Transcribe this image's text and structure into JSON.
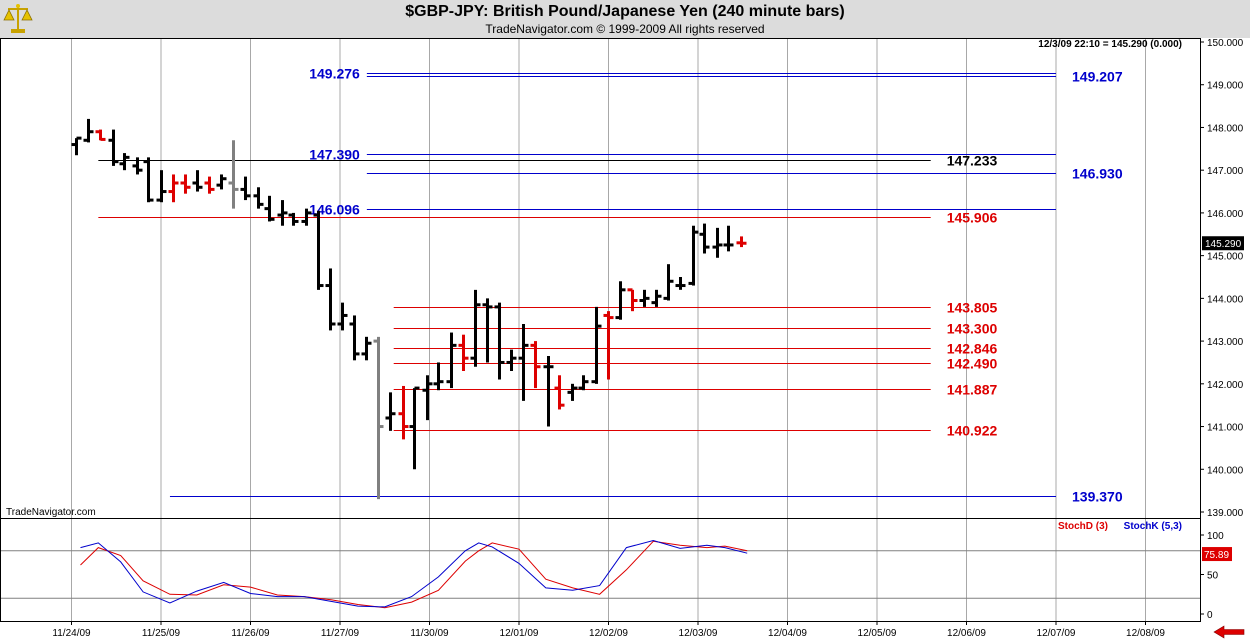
{
  "header": {
    "title": "$GBP-JPY:  British Pound/Japanese Yen  (240 minute bars)",
    "subtitle": "TradeNavigator.com © 1999-2009 All rights reserved",
    "info": "12/3/09 22:10 = 145.290 (0.000)",
    "watermark": "TradeNavigator.com"
  },
  "colors": {
    "background": "#ffffff",
    "header": "#dcdcdc",
    "grid": "#a8a8a8",
    "blue_level": "#0000cc",
    "red_level": "#dd0000",
    "black_level": "#000000",
    "up_bar": "#000000",
    "down_bar": "#dd0000",
    "gray_bar": "#808080",
    "stochD": "#dd0000",
    "stochK": "#0000cc"
  },
  "chart_data": [
    {
      "type": "ohlc",
      "title": "$GBP-JPY:  British Pound/Japanese Yen  (240 minute bars)",
      "ylim": [
        139,
        150
      ],
      "yticks": [
        139,
        140,
        141,
        142,
        143,
        144,
        145,
        146,
        147,
        148,
        149,
        150
      ],
      "ytick_labels": [
        "139.000",
        "140.000",
        "141.000",
        "142.000",
        "143.000",
        "144.000",
        "145.000",
        "146.000",
        "147.000",
        "148.000",
        "149.000",
        "150.000"
      ],
      "xlim": [
        -0.2,
        13.5
      ],
      "x_dates": [
        "11/24/09",
        "11/25/09",
        "11/26/09",
        "11/27/09",
        "11/30/09",
        "12/01/09",
        "12/02/09",
        "12/03/09",
        "12/04/09",
        "12/05/09",
        "12/06/09",
        "12/07/09",
        "12/08/09"
      ],
      "last_price_label": "145.290",
      "bars": [
        {
          "x": 0.05,
          "h": 147.75,
          "l": 147.35,
          "o": 147.6,
          "c": 147.75,
          "col": "k"
        },
        {
          "x": 0.18,
          "h": 148.2,
          "l": 147.65,
          "o": 147.7,
          "c": 147.9,
          "col": "k"
        },
        {
          "x": 0.32,
          "h": 147.95,
          "l": 147.7,
          "o": 147.9,
          "c": 147.72,
          "col": "r"
        },
        {
          "x": 0.46,
          "h": 147.95,
          "l": 147.1,
          "o": 147.7,
          "c": 147.2,
          "col": "k"
        },
        {
          "x": 0.59,
          "h": 147.4,
          "l": 147.0,
          "o": 147.15,
          "c": 147.3,
          "col": "k"
        },
        {
          "x": 0.73,
          "h": 147.3,
          "l": 146.9,
          "o": 147.1,
          "c": 147.0,
          "col": "k"
        },
        {
          "x": 0.86,
          "h": 147.3,
          "l": 146.25,
          "o": 147.2,
          "c": 146.3,
          "col": "k"
        },
        {
          "x": 1.0,
          "h": 147.0,
          "l": 146.25,
          "o": 146.3,
          "c": 146.5,
          "col": "k"
        },
        {
          "x": 1.13,
          "h": 146.9,
          "l": 146.25,
          "o": 146.5,
          "c": 146.7,
          "col": "r"
        },
        {
          "x": 1.27,
          "h": 146.9,
          "l": 146.45,
          "o": 146.7,
          "c": 146.6,
          "col": "r"
        },
        {
          "x": 1.4,
          "h": 147.0,
          "l": 146.5,
          "o": 146.7,
          "c": 146.6,
          "col": "k"
        },
        {
          "x": 1.54,
          "h": 146.85,
          "l": 146.45,
          "o": 146.7,
          "c": 146.55,
          "col": "r"
        },
        {
          "x": 1.67,
          "h": 146.9,
          "l": 146.55,
          "o": 146.65,
          "c": 146.8,
          "col": "k"
        },
        {
          "x": 1.81,
          "h": 147.7,
          "l": 146.1,
          "o": 146.7,
          "c": 146.55,
          "col": "g"
        },
        {
          "x": 1.94,
          "h": 146.85,
          "l": 146.3,
          "o": 146.55,
          "c": 146.4,
          "col": "k"
        },
        {
          "x": 2.08,
          "h": 146.6,
          "l": 146.1,
          "o": 146.4,
          "c": 146.2,
          "col": "k"
        },
        {
          "x": 2.21,
          "h": 146.4,
          "l": 145.8,
          "o": 146.1,
          "c": 145.85,
          "col": "k"
        },
        {
          "x": 2.35,
          "h": 146.3,
          "l": 145.7,
          "o": 145.95,
          "c": 146.0,
          "col": "k"
        },
        {
          "x": 2.48,
          "h": 146.0,
          "l": 145.7,
          "o": 145.95,
          "c": 145.8,
          "col": "k"
        },
        {
          "x": 2.62,
          "h": 146.1,
          "l": 145.7,
          "o": 145.8,
          "c": 146.0,
          "col": "k"
        },
        {
          "x": 2.75,
          "h": 146.05,
          "l": 144.2,
          "o": 145.95,
          "c": 144.3,
          "col": "k"
        },
        {
          "x": 2.89,
          "h": 144.7,
          "l": 143.25,
          "o": 144.3,
          "c": 143.4,
          "col": "k"
        },
        {
          "x": 3.02,
          "h": 143.9,
          "l": 143.25,
          "o": 143.4,
          "c": 143.6,
          "col": "k"
        },
        {
          "x": 3.16,
          "h": 143.6,
          "l": 142.55,
          "o": 143.4,
          "c": 142.7,
          "col": "k"
        },
        {
          "x": 3.29,
          "h": 143.1,
          "l": 142.55,
          "o": 142.7,
          "c": 142.95,
          "col": "k"
        },
        {
          "x": 3.43,
          "h": 143.1,
          "l": 139.3,
          "o": 143.0,
          "c": 141.0,
          "col": "g"
        },
        {
          "x": 3.56,
          "h": 141.8,
          "l": 140.9,
          "o": 141.2,
          "c": 141.3,
          "col": "k"
        },
        {
          "x": 3.7,
          "h": 141.95,
          "l": 140.7,
          "o": 141.3,
          "c": 141.0,
          "col": "r"
        },
        {
          "x": 3.83,
          "h": 141.9,
          "l": 140.0,
          "o": 141.0,
          "c": 141.9,
          "col": "k"
        },
        {
          "x": 3.97,
          "h": 142.2,
          "l": 141.15,
          "o": 141.85,
          "c": 142.0,
          "col": "k"
        },
        {
          "x": 4.1,
          "h": 142.5,
          "l": 141.85,
          "o": 142.0,
          "c": 142.05,
          "col": "k"
        },
        {
          "x": 4.24,
          "h": 143.2,
          "l": 141.9,
          "o": 142.05,
          "c": 142.9,
          "col": "k"
        },
        {
          "x": 4.37,
          "h": 143.15,
          "l": 142.3,
          "o": 142.9,
          "c": 142.6,
          "col": "r"
        },
        {
          "x": 4.51,
          "h": 144.2,
          "l": 142.4,
          "o": 142.6,
          "c": 143.85,
          "col": "k"
        },
        {
          "x": 4.64,
          "h": 144.0,
          "l": 142.5,
          "o": 143.85,
          "c": 143.8,
          "col": "k"
        },
        {
          "x": 4.78,
          "h": 143.9,
          "l": 142.1,
          "o": 143.8,
          "c": 142.5,
          "col": "k"
        },
        {
          "x": 4.91,
          "h": 142.8,
          "l": 142.3,
          "o": 142.5,
          "c": 142.6,
          "col": "k"
        },
        {
          "x": 5.05,
          "h": 143.4,
          "l": 141.6,
          "o": 142.6,
          "c": 142.9,
          "col": "k"
        },
        {
          "x": 5.18,
          "h": 143.0,
          "l": 141.9,
          "o": 142.9,
          "c": 142.4,
          "col": "r"
        },
        {
          "x": 5.32,
          "h": 142.65,
          "l": 141.0,
          "o": 142.4,
          "c": 142.4,
          "col": "k"
        },
        {
          "x": 5.45,
          "h": 142.2,
          "l": 141.4,
          "o": 141.9,
          "c": 141.5,
          "col": "r"
        },
        {
          "x": 5.59,
          "h": 142.0,
          "l": 141.6,
          "o": 141.8,
          "c": 141.9,
          "col": "k"
        },
        {
          "x": 5.72,
          "h": 142.2,
          "l": 141.85,
          "o": 141.9,
          "c": 142.05,
          "col": "k"
        },
        {
          "x": 5.86,
          "h": 143.8,
          "l": 142.0,
          "o": 142.05,
          "c": 143.35,
          "col": "k"
        },
        {
          "x": 5.99,
          "h": 143.7,
          "l": 142.1,
          "o": 143.6,
          "c": 143.55,
          "col": "r"
        },
        {
          "x": 6.13,
          "h": 144.4,
          "l": 143.5,
          "o": 143.55,
          "c": 144.2,
          "col": "k"
        },
        {
          "x": 6.26,
          "h": 144.2,
          "l": 143.7,
          "o": 144.2,
          "c": 143.95,
          "col": "r"
        },
        {
          "x": 6.4,
          "h": 144.2,
          "l": 143.8,
          "o": 143.95,
          "c": 144.0,
          "col": "k"
        },
        {
          "x": 6.53,
          "h": 144.2,
          "l": 143.8,
          "o": 143.9,
          "c": 144.05,
          "col": "k"
        },
        {
          "x": 6.67,
          "h": 144.8,
          "l": 143.95,
          "o": 144.0,
          "c": 144.4,
          "col": "k"
        },
        {
          "x": 6.8,
          "h": 144.5,
          "l": 144.2,
          "o": 144.3,
          "c": 144.3,
          "col": "k"
        },
        {
          "x": 6.94,
          "h": 145.7,
          "l": 144.3,
          "o": 144.35,
          "c": 145.55,
          "col": "k"
        },
        {
          "x": 7.07,
          "h": 145.75,
          "l": 145.05,
          "o": 145.5,
          "c": 145.2,
          "col": "k"
        },
        {
          "x": 7.21,
          "h": 145.65,
          "l": 144.95,
          "o": 145.2,
          "c": 145.25,
          "col": "k"
        },
        {
          "x": 7.34,
          "h": 145.7,
          "l": 145.1,
          "o": 145.25,
          "c": 145.25,
          "col": "k"
        },
        {
          "x": 7.48,
          "h": 145.45,
          "l": 145.2,
          "o": 145.3,
          "c": 145.29,
          "col": "r"
        }
      ]
    },
    {
      "type": "line",
      "legend": [
        "StochD (3)",
        "StochK (5,3)"
      ],
      "ylim": [
        -5,
        115
      ],
      "yticks": [
        0,
        50,
        100
      ],
      "last_value_label": "75.89",
      "series": [
        {
          "name": "StochD (3)",
          "color": "#dd0000",
          "x": [
            0.1,
            0.3,
            0.55,
            0.8,
            1.1,
            1.4,
            1.7,
            2.0,
            2.3,
            2.6,
            2.9,
            3.2,
            3.5,
            3.8,
            4.1,
            4.4,
            4.55,
            4.7,
            5.0,
            5.3,
            5.6,
            5.9,
            6.2,
            6.5,
            6.8,
            7.1,
            7.3,
            7.55
          ],
          "values": [
            62,
            84,
            74,
            42,
            25,
            24,
            37,
            34,
            24,
            22,
            18,
            12,
            8,
            15,
            30,
            67,
            80,
            90,
            82,
            44,
            33,
            25,
            56,
            92,
            87,
            84,
            86,
            80
          ]
        },
        {
          "name": "StochK (5,3)",
          "color": "#0000cc",
          "x": [
            0.1,
            0.3,
            0.55,
            0.8,
            1.1,
            1.4,
            1.7,
            2.0,
            2.3,
            2.6,
            2.9,
            3.2,
            3.5,
            3.8,
            4.1,
            4.4,
            4.55,
            4.7,
            5.0,
            5.3,
            5.6,
            5.9,
            6.2,
            6.5,
            6.8,
            7.1,
            7.3,
            7.55
          ],
          "values": [
            84,
            90,
            66,
            28,
            14,
            29,
            40,
            26,
            22,
            22,
            16,
            10,
            9,
            22,
            47,
            80,
            90,
            85,
            64,
            33,
            30,
            36,
            84,
            93,
            83,
            87,
            84,
            77
          ]
        }
      ]
    }
  ],
  "levels": [
    {
      "value": 149.276,
      "label": "149.276",
      "color": "blue",
      "x1": 3.3,
      "x2": 11.0,
      "label_side": "left"
    },
    {
      "value": 149.207,
      "label": "149.207",
      "color": "blue",
      "x1": 3.3,
      "x2": 11.0,
      "label_side": "right"
    },
    {
      "value": 147.39,
      "label": "147.390",
      "color": "blue",
      "x1": 3.3,
      "x2": 11.0,
      "label_side": "left"
    },
    {
      "value": 147.233,
      "label": "147.233",
      "color": "black",
      "x1": 0.3,
      "x2": 9.6,
      "label_side": "right"
    },
    {
      "value": 146.93,
      "label": "146.930",
      "color": "blue",
      "x1": 3.3,
      "x2": 11.0,
      "label_side": "right"
    },
    {
      "value": 146.096,
      "label": "146.096",
      "color": "blue",
      "x1": 3.3,
      "x2": 11.0,
      "label_side": "left"
    },
    {
      "value": 145.906,
      "label": "145.906",
      "color": "red",
      "x1": 0.3,
      "x2": 9.6,
      "label_side": "right"
    },
    {
      "value": 143.805,
      "label": "143.805",
      "color": "red",
      "x1": 3.6,
      "x2": 9.6,
      "label_side": "right"
    },
    {
      "value": 143.3,
      "label": "143.300",
      "color": "red",
      "x1": 3.6,
      "x2": 9.6,
      "label_side": "right"
    },
    {
      "value": 142.846,
      "label": "142.846",
      "color": "red",
      "x1": 3.6,
      "x2": 9.6,
      "label_side": "right"
    },
    {
      "value": 142.49,
      "label": "142.490",
      "color": "red",
      "x1": 3.6,
      "x2": 9.6,
      "label_side": "right"
    },
    {
      "value": 141.887,
      "label": "141.887",
      "color": "red",
      "x1": 3.6,
      "x2": 9.6,
      "label_side": "right"
    },
    {
      "value": 140.922,
      "label": "140.922",
      "color": "red",
      "x1": 3.6,
      "x2": 9.6,
      "label_side": "right"
    },
    {
      "value": 139.37,
      "label": "139.370",
      "color": "blue",
      "x1": 1.1,
      "x2": 11.0,
      "label_side": "right"
    }
  ]
}
